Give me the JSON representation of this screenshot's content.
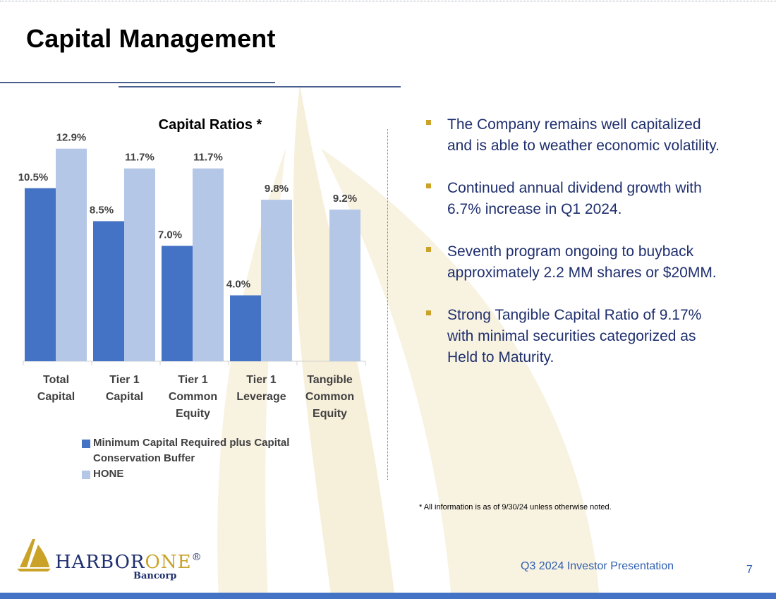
{
  "page": {
    "title": "Capital Management",
    "footer_label": "Q3 2024 Investor Presentation",
    "page_number": "7",
    "footnote": "* All information is as of 9/30/24 unless otherwise noted."
  },
  "logo": {
    "name_part1": "HARBOR",
    "name_part2": "ONE",
    "registered": "®",
    "sub": "Bancorp"
  },
  "bullets": [
    "The Company remains well capitalized and is able to weather economic volatility.",
    "Continued annual dividend growth with 6.7% increase in Q1 2024.",
    "Seventh program ongoing to buyback approximately 2.2 MM shares or $20MM.",
    "Strong Tangible Capital Ratio of 9.17% with minimal securities categorized as Held to Maturity."
  ],
  "colors": {
    "series_min": "#4472c4",
    "series_hone": "#b4c7e7",
    "accent_gold": "#c9a227",
    "text_navy": "#1f2f6e"
  },
  "chart_data": {
    "type": "bar",
    "title": "Capital Ratios *",
    "categories": [
      [
        "Total",
        "Capital"
      ],
      [
        "Tier 1",
        "Capital"
      ],
      [
        "Tier 1",
        "Common",
        "Equity"
      ],
      [
        "Tier 1",
        "Leverage"
      ],
      [
        "Tangible",
        "Common",
        "Equity"
      ]
    ],
    "series": [
      {
        "name": "Minimum Capital Required plus Capital Conservation Buffer",
        "values": [
          10.5,
          8.5,
          7.0,
          4.0,
          null
        ],
        "labels": [
          "10.5%",
          "8.5%",
          "7.0%",
          "4.0%",
          ""
        ]
      },
      {
        "name": "HONE",
        "values": [
          12.9,
          11.7,
          11.7,
          9.8,
          9.2
        ],
        "labels": [
          "12.9%",
          "11.7%",
          "11.7%",
          "9.8%",
          "9.2%"
        ]
      }
    ],
    "ylim": [
      0,
      14
    ],
    "grid": false,
    "legend": "bottom"
  }
}
